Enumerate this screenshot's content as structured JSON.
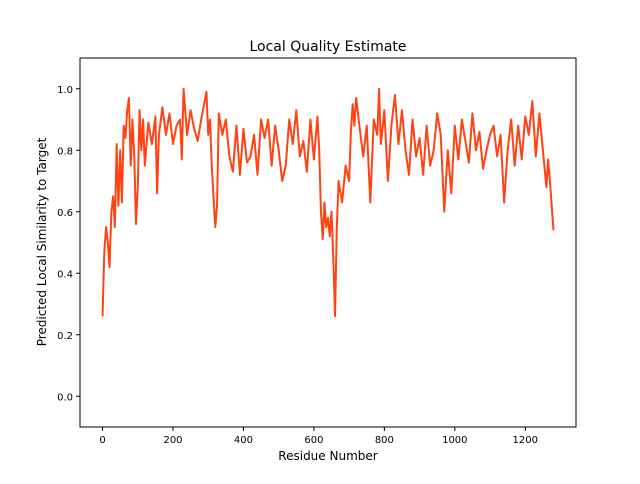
{
  "chart_data": {
    "type": "line",
    "title": "Local Quality Estimate",
    "xlabel": "Residue Number",
    "ylabel": "Predicted Local Similarity to Target",
    "xlim": [
      -64,
      1344
    ],
    "ylim": [
      -0.1,
      1.1
    ],
    "xticks": [
      0,
      200,
      400,
      600,
      800,
      1000,
      1200
    ],
    "yticks": [
      {
        "value": 0,
        "label": "0.0"
      },
      0.2,
      0.4,
      0.6,
      0.8,
      {
        "value": 1,
        "label": "1.0"
      }
    ],
    "series": [
      {
        "color": "#ff4313",
        "x": [
          0,
          5,
          10,
          15,
          20,
          25,
          30,
          35,
          40,
          45,
          50,
          55,
          60,
          65,
          70,
          75,
          80,
          85,
          90,
          95,
          100,
          105,
          110,
          115,
          120,
          130,
          140,
          150,
          155,
          160,
          170,
          180,
          190,
          200,
          210,
          220,
          225,
          230,
          240,
          250,
          260,
          270,
          280,
          290,
          295,
          300,
          305,
          310,
          315,
          320,
          325,
          330,
          340,
          350,
          360,
          370,
          380,
          390,
          400,
          410,
          420,
          430,
          440,
          450,
          460,
          470,
          480,
          490,
          500,
          510,
          520,
          530,
          540,
          550,
          560,
          570,
          580,
          590,
          600,
          610,
          615,
          620,
          625,
          630,
          635,
          640,
          645,
          650,
          655,
          660,
          665,
          670,
          680,
          690,
          700,
          705,
          710,
          715,
          720,
          730,
          740,
          750,
          760,
          770,
          780,
          785,
          790,
          800,
          810,
          820,
          830,
          840,
          850,
          860,
          870,
          880,
          890,
          900,
          910,
          920,
          930,
          940,
          950,
          960,
          970,
          980,
          990,
          1000,
          1010,
          1020,
          1030,
          1040,
          1050,
          1060,
          1070,
          1080,
          1090,
          1100,
          1110,
          1120,
          1130,
          1140,
          1150,
          1160,
          1170,
          1180,
          1190,
          1200,
          1210,
          1220,
          1230,
          1240,
          1250,
          1260,
          1265,
          1270,
          1280
        ],
        "values": [
          0.26,
          0.47,
          0.55,
          0.5,
          0.42,
          0.6,
          0.65,
          0.55,
          0.82,
          0.62,
          0.8,
          0.63,
          0.88,
          0.84,
          0.93,
          0.97,
          0.75,
          0.9,
          0.78,
          0.56,
          0.68,
          0.93,
          0.8,
          0.9,
          0.75,
          0.89,
          0.82,
          0.91,
          0.66,
          0.85,
          0.94,
          0.85,
          0.92,
          0.82,
          0.88,
          0.9,
          0.77,
          1.0,
          0.85,
          0.93,
          0.87,
          0.83,
          0.9,
          0.96,
          0.99,
          0.85,
          0.9,
          0.75,
          0.65,
          0.55,
          0.62,
          0.92,
          0.85,
          0.9,
          0.78,
          0.73,
          0.88,
          0.72,
          0.87,
          0.76,
          0.78,
          0.85,
          0.72,
          0.9,
          0.84,
          0.9,
          0.75,
          0.88,
          0.8,
          0.7,
          0.75,
          0.9,
          0.82,
          0.93,
          0.78,
          0.83,
          0.73,
          0.9,
          0.77,
          0.91,
          0.8,
          0.6,
          0.51,
          0.63,
          0.55,
          0.58,
          0.52,
          0.6,
          0.45,
          0.26,
          0.55,
          0.7,
          0.63,
          0.75,
          0.7,
          0.86,
          0.95,
          0.88,
          0.97,
          0.87,
          0.78,
          0.88,
          0.63,
          0.9,
          0.85,
          1.0,
          0.82,
          0.93,
          0.7,
          0.88,
          0.98,
          0.82,
          0.93,
          0.8,
          0.72,
          0.9,
          0.78,
          0.84,
          0.72,
          0.88,
          0.75,
          0.8,
          0.92,
          0.85,
          0.6,
          0.8,
          0.66,
          0.88,
          0.77,
          0.9,
          0.83,
          0.76,
          0.92,
          0.8,
          0.86,
          0.74,
          0.8,
          0.85,
          0.88,
          0.78,
          0.85,
          0.63,
          0.8,
          0.9,
          0.75,
          0.88,
          0.77,
          0.91,
          0.85,
          0.96,
          0.78,
          0.92,
          0.8,
          0.68,
          0.77,
          0.7,
          0.54
        ]
      }
    ]
  }
}
